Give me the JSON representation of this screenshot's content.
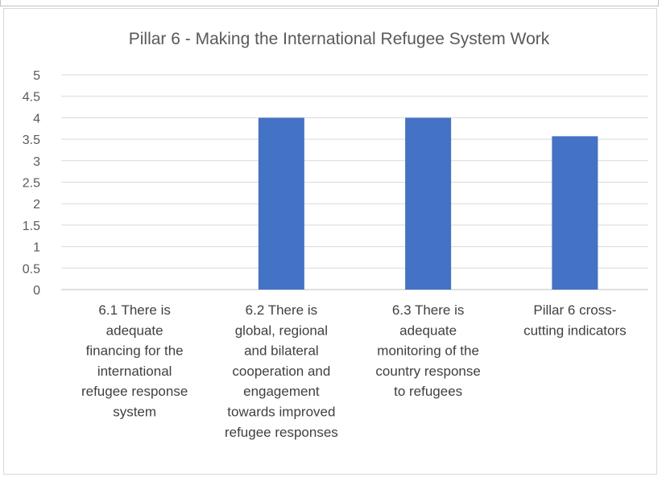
{
  "chart_data": {
    "type": "bar",
    "title": "Pillar 6 - Making the International Refugee System Work",
    "categories": [
      [
        "6.1 There is",
        "adequate",
        "financing for the",
        "international",
        "refugee response",
        "system"
      ],
      [
        "6.2 There is",
        "global, regional",
        "and bilateral",
        "cooperation and",
        "engagement",
        "towards improved",
        "refugee responses"
      ],
      [
        "6.3 There is",
        "adequate",
        "monitoring of the",
        "country response",
        "to refugees"
      ],
      [
        "Pillar 6 cross-",
        "cutting indicators"
      ]
    ],
    "values": [
      0,
      4,
      4,
      3.57
    ],
    "ylim": [
      0,
      5
    ],
    "yticks": [
      "0",
      "0.5",
      "1",
      "1.5",
      "2",
      "2.5",
      "3",
      "3.5",
      "4",
      "4.5",
      "5"
    ],
    "ytick_values": [
      0,
      0.5,
      1,
      1.5,
      2,
      2.5,
      3,
      3.5,
      4,
      4.5,
      5
    ],
    "bar_color": "#4472c4",
    "grid": true,
    "legend": "none"
  }
}
